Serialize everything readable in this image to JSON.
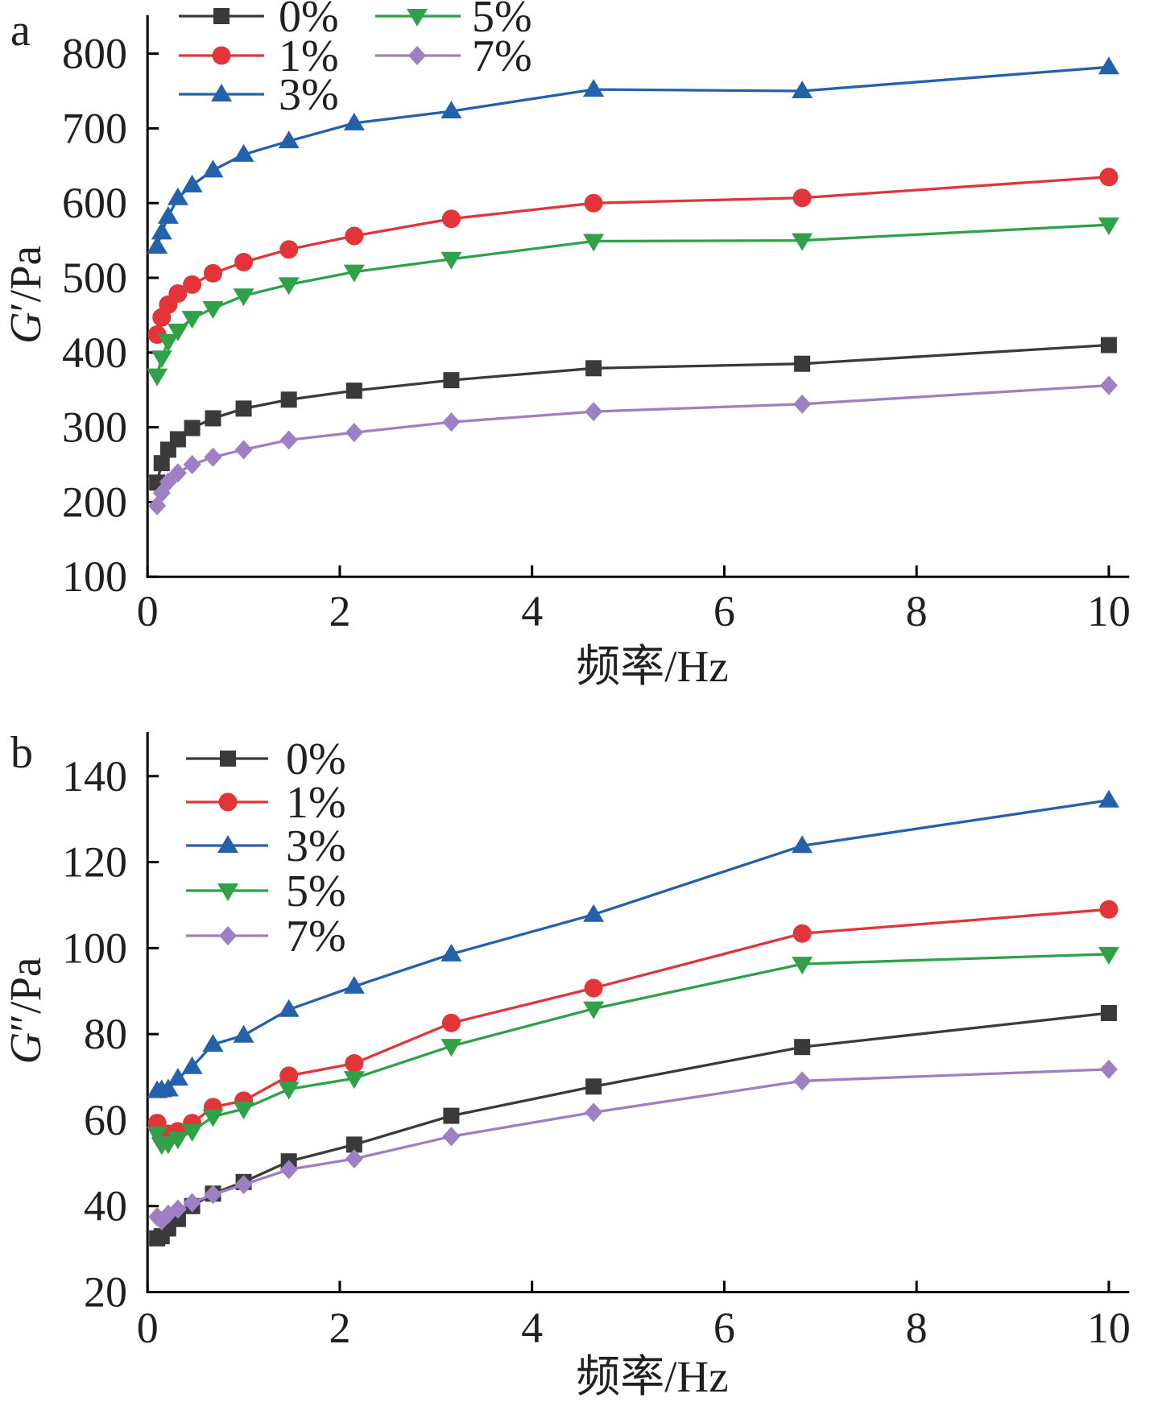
{
  "chart_data": [
    {
      "panel_label": "a",
      "type": "line",
      "xlabel": "频率/Hz",
      "ylabel": "G′/Pa",
      "xlim": [
        0,
        10.2
      ],
      "ylim": [
        100,
        850
      ],
      "xticks": [
        0,
        2,
        4,
        6,
        8,
        10
      ],
      "yticks": [
        100,
        200,
        300,
        400,
        500,
        600,
        700,
        800
      ],
      "grid": false,
      "legend": "top-left",
      "x": [
        0.1,
        0.147,
        0.215,
        0.316,
        0.464,
        0.681,
        1,
        1.47,
        2.15,
        3.16,
        4.64,
        6.81,
        10
      ],
      "series": [
        {
          "name": "0%",
          "color": "#3a3a3a",
          "marker": "square",
          "values": [
            226,
            252,
            270,
            284,
            299,
            312,
            325,
            337,
            349,
            363,
            379,
            385,
            410
          ]
        },
        {
          "name": "1%",
          "color": "#e2353a",
          "marker": "circle",
          "values": [
            424,
            447,
            464,
            479,
            491,
            506,
            521,
            538,
            556,
            579,
            600,
            607,
            635
          ]
        },
        {
          "name": "3%",
          "color": "#2461ad",
          "marker": "triangle-up",
          "values": [
            542,
            561,
            582,
            607,
            624,
            644,
            665,
            683,
            707,
            723,
            752,
            750,
            782
          ]
        },
        {
          "name": "5%",
          "color": "#2fa148",
          "marker": "triangle-down",
          "values": [
            369,
            393,
            415,
            429,
            446,
            459,
            476,
            491,
            508,
            525,
            549,
            550,
            571
          ]
        },
        {
          "name": "7%",
          "color": "#9d80c4",
          "marker": "diamond",
          "values": [
            195,
            212,
            227,
            239,
            250,
            260,
            270,
            283,
            293,
            307,
            321,
            331,
            356
          ]
        }
      ]
    },
    {
      "panel_label": "b",
      "type": "line",
      "xlabel": "频率/Hz",
      "ylabel": "G″/Pa",
      "xlim": [
        0,
        10.2
      ],
      "ylim": [
        20,
        150
      ],
      "xticks": [
        0,
        2,
        4,
        6,
        8,
        10
      ],
      "yticks": [
        20,
        40,
        60,
        80,
        100,
        120,
        140
      ],
      "grid": false,
      "legend": "top-left",
      "x": [
        0.1,
        0.147,
        0.215,
        0.316,
        0.464,
        0.681,
        1,
        1.47,
        2.15,
        3.16,
        4.64,
        6.81,
        10
      ],
      "series": [
        {
          "name": "0%",
          "color": "#3a3a3a",
          "marker": "square",
          "values": [
            32.5,
            33.0,
            34.8,
            37.0,
            40.0,
            42.9,
            45.6,
            50.4,
            54.3,
            61.0,
            67.8,
            77.0,
            84.9
          ]
        },
        {
          "name": "1%",
          "color": "#e2353a",
          "marker": "circle",
          "values": [
            59.3,
            56.0,
            56.8,
            57.4,
            59.3,
            63.0,
            64.5,
            70.3,
            73.2,
            82.6,
            90.7,
            103.4,
            109.0
          ]
        },
        {
          "name": "3%",
          "color": "#2461ad",
          "marker": "triangle-up",
          "values": [
            66.8,
            67.0,
            67.2,
            69.7,
            72.4,
            77.6,
            79.7,
            85.7,
            91.1,
            98.6,
            107.8,
            123.8,
            134.4
          ]
        },
        {
          "name": "5%",
          "color": "#2fa148",
          "marker": "triangle-down",
          "values": [
            56.8,
            54.3,
            54.5,
            55.6,
            57.4,
            60.8,
            62.6,
            67.2,
            69.7,
            77.2,
            85.9,
            96.3,
            98.6
          ]
        },
        {
          "name": "7%",
          "color": "#9d80c4",
          "marker": "diamond",
          "values": [
            37.5,
            36.6,
            38.1,
            39.3,
            40.8,
            42.7,
            45.0,
            48.5,
            51.0,
            56.2,
            61.8,
            69.1,
            71.8
          ]
        }
      ]
    }
  ]
}
